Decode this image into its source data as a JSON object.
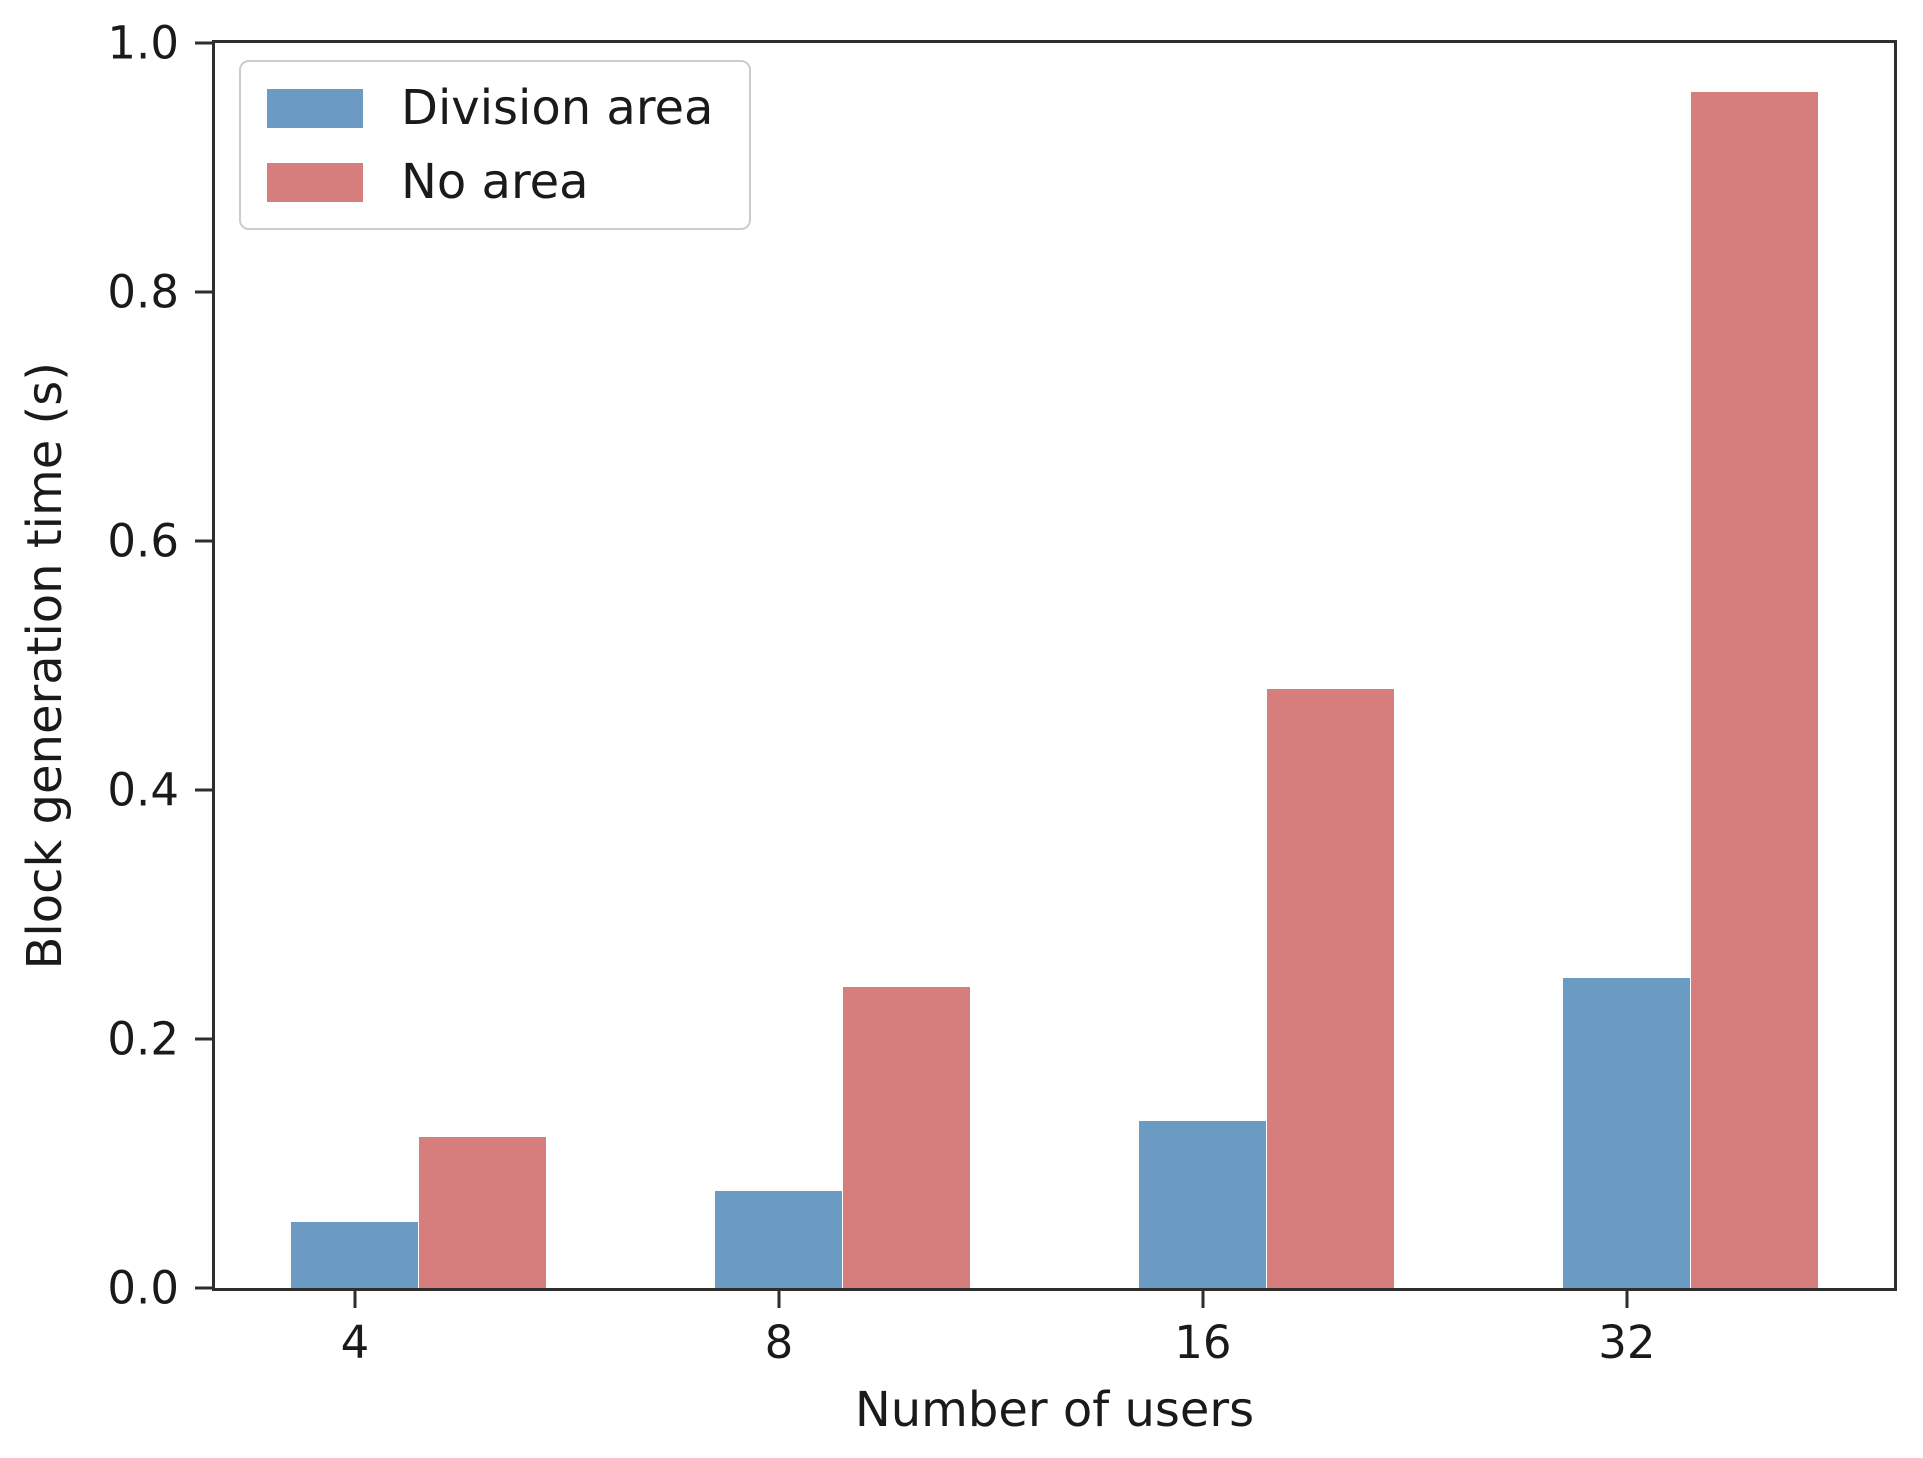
{
  "chart_data": {
    "type": "bar",
    "title": "",
    "xlabel": "Number of users",
    "ylabel": "Block generation time (s)",
    "categories": [
      "4",
      "8",
      "16",
      "32"
    ],
    "series": [
      {
        "name": "Division area",
        "color": "#6B9BC3",
        "values": [
          0.053,
          0.078,
          0.134,
          0.249
        ]
      },
      {
        "name": "No area",
        "color": "#D67D7E",
        "values": [
          0.121,
          0.242,
          0.481,
          0.961
        ]
      }
    ],
    "ylim": [
      0.0,
      1.0
    ],
    "yticks": [
      "0.0",
      "0.2",
      "0.4",
      "0.6",
      "0.8",
      "1.0"
    ],
    "bar_width_units": 0.3,
    "xlim_units": [
      -0.33,
      3.63
    ],
    "grid": false,
    "legend_position": "upper left",
    "axis_color": "#2e2e2e",
    "text_color": "#1a1a1a",
    "legend_border_color": "#cccccc"
  }
}
